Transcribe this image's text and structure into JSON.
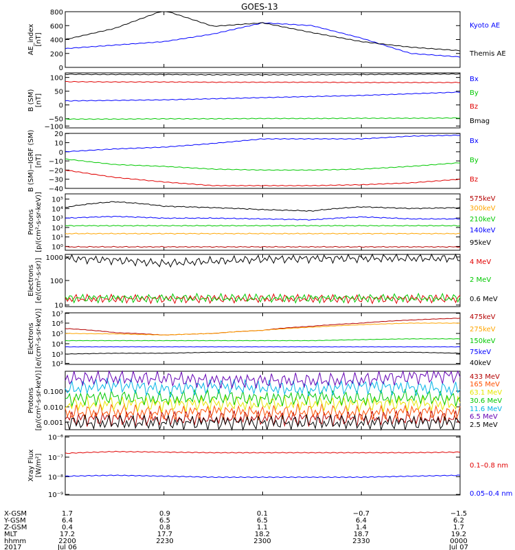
{
  "title": "GOES-13",
  "panels": [
    {
      "id": "ae",
      "ylabel": [
        "AE_index",
        "[nT]"
      ],
      "ticks": [
        "800",
        "600",
        "400",
        "200",
        "0"
      ],
      "legend": [
        {
          "label": "Kyoto AE",
          "color": "#0000ff"
        },
        {
          "label": "Themis AE",
          "color": "#000000"
        }
      ]
    },
    {
      "id": "b-sm",
      "ylabel": [
        "B (SM)",
        "[nT]"
      ],
      "ticks": [
        "100",
        "50",
        "0",
        "−50",
        "−100"
      ],
      "legend": [
        {
          "label": "Bx",
          "color": "#0000ff"
        },
        {
          "label": "By",
          "color": "#00c800"
        },
        {
          "label": "Bz",
          "color": "#e00000"
        },
        {
          "label": "Bmag",
          "color": "#000000"
        }
      ]
    },
    {
      "id": "b-igrf",
      "ylabel": [
        "B (SM)−IGRF (SM)",
        "[nT]"
      ],
      "ticks": [
        "20",
        "10",
        "0",
        "−10",
        "−20",
        "−30",
        "−40"
      ],
      "legend": [
        {
          "label": "Bx",
          "color": "#0000ff"
        },
        {
          "label": "By",
          "color": "#00c800"
        },
        {
          "label": "Bz",
          "color": "#e00000"
        }
      ]
    },
    {
      "id": "protons-low",
      "ylabel": [
        "Protons",
        "[p/(cm²-s-sr-keV)]"
      ],
      "ticks": [
        "10⁵",
        "10⁴",
        "10³",
        "10²",
        "10¹",
        "10⁰"
      ],
      "legend": [
        {
          "label": "575keV",
          "color": "#b40000"
        },
        {
          "label": "300keV",
          "color": "#ffa500"
        },
        {
          "label": "210keV",
          "color": "#00c800"
        },
        {
          "label": "140keV",
          "color": "#0000ff"
        },
        {
          "label": "95keV",
          "color": "#000000"
        }
      ]
    },
    {
      "id": "electrons-mev",
      "ylabel": [
        "Electrons",
        "[e/(cm²-s-sr)]"
      ],
      "ticks": [
        "1000",
        "100",
        "10"
      ],
      "legend": [
        {
          "label": "4 MeV",
          "color": "#e00000"
        },
        {
          "label": "2 MeV",
          "color": "#00c800"
        },
        {
          "label": "0.6 MeV",
          "color": "#000000"
        }
      ]
    },
    {
      "id": "electrons-kev",
      "ylabel": [
        "Electrons",
        "[e/(cm²-s-sr-keV)]"
      ],
      "ticks": [
        "10⁷",
        "10⁶",
        "10⁵",
        "10⁴",
        "10³",
        "10²"
      ],
      "legend": [
        {
          "label": "475keV",
          "color": "#b40000"
        },
        {
          "label": "275keV",
          "color": "#ffa500"
        },
        {
          "label": "150keV",
          "color": "#00c800"
        },
        {
          "label": "75keV",
          "color": "#0000ff"
        },
        {
          "label": "40keV",
          "color": "#000000"
        }
      ]
    },
    {
      "id": "protons-high",
      "ylabel": [
        "Protons",
        "[p/(cm²-s-sr-keV)]"
      ],
      "ticks": [
        "0.100",
        "0.010",
        "0.001"
      ],
      "legend": [
        {
          "label": "433 MeV",
          "color": "#b40000"
        },
        {
          "label": "165 MeV",
          "color": "#ff5000"
        },
        {
          "label": "63.1 MeV",
          "color": "#e6e600"
        },
        {
          "label": "30.6 MeV",
          "color": "#00c800"
        },
        {
          "label": "11.6 MeV",
          "color": "#00b4e6"
        },
        {
          "label": "6.5 MeV",
          "color": "#6400b4"
        },
        {
          "label": "2.5 MeV",
          "color": "#000000"
        }
      ]
    },
    {
      "id": "xray",
      "ylabel": [
        "Xray Flux",
        "[W/m²]"
      ],
      "ticks": [
        "10⁻⁶",
        "10⁻⁷",
        "10⁻⁸",
        "10⁻⁹"
      ],
      "legend": [
        {
          "label": "0.1–0.8 nm",
          "color": "#e00000"
        },
        {
          "label": "0.05–0.4 nm",
          "color": "#0000ff"
        }
      ]
    }
  ],
  "footer": {
    "row_labels": [
      "X-GSM",
      "Y-GSM",
      "Z-GSM",
      "MLT",
      "hhmm",
      "2017"
    ],
    "columns": [
      [
        "1.7",
        "6.4",
        "0.4",
        "17.2",
        "2200",
        "Jul 06"
      ],
      [
        "0.9",
        "6.5",
        "0.8",
        "17.7",
        "2230",
        ""
      ],
      [
        "0.1",
        "6.5",
        "1.1",
        "18.2",
        "2300",
        ""
      ],
      [
        "−0.7",
        "6.4",
        "1.4",
        "18.7",
        "2330",
        ""
      ],
      [
        "−1.5",
        "6.2",
        "1.7",
        "19.2",
        "0000",
        "Jul 07"
      ]
    ]
  },
  "chart_data": [
    {
      "type": "line",
      "title": "GOES-13",
      "x": [
        "2200",
        "2215",
        "2230",
        "2245",
        "2300",
        "2315",
        "2330",
        "2345",
        "0000"
      ],
      "ylabel": "AE_index [nT]",
      "ylim": [
        0,
        800
      ],
      "series": [
        {
          "name": "Kyoto AE",
          "values": [
            270,
            320,
            370,
            480,
            640,
            600,
            420,
            200,
            150
          ]
        },
        {
          "name": "Themis AE",
          "values": [
            400,
            560,
            820,
            590,
            640,
            500,
            370,
            290,
            240
          ]
        }
      ]
    },
    {
      "type": "line",
      "ylabel": "B (SM) [nT]",
      "ylim": [
        -100,
        100
      ],
      "series": [
        {
          "name": "Bx",
          "values": [
            -2,
            0,
            2,
            6,
            10,
            14,
            18,
            24,
            30
          ]
        },
        {
          "name": "By",
          "values": [
            -68,
            -68,
            -67,
            -67,
            -66,
            -66,
            -65,
            -65,
            -64
          ]
        },
        {
          "name": "Bz",
          "values": [
            68,
            67,
            67,
            66,
            66,
            66,
            65,
            65,
            65
          ]
        },
        {
          "name": "Bmag",
          "values": [
            95,
            94,
            94,
            93,
            93,
            93,
            94,
            95,
            96
          ]
        }
      ]
    },
    {
      "type": "line",
      "ylabel": "B (SM)-IGRF (SM) [nT]",
      "ylim": [
        -40,
        20
      ],
      "series": [
        {
          "name": "Bx",
          "values": [
            0,
            3,
            5,
            9,
            14,
            14,
            14,
            17,
            18
          ]
        },
        {
          "name": "By",
          "values": [
            -8,
            -14,
            -16,
            -19,
            -20,
            -20,
            -19,
            -16,
            -12
          ]
        },
        {
          "name": "Bz",
          "values": [
            -20,
            -28,
            -33,
            -37,
            -37,
            -37,
            -36,
            -34,
            -30
          ]
        }
      ]
    },
    {
      "type": "line",
      "ylabel": "Protons [p/(cm2-s-sr-keV)]",
      "ylim": [
        1,
        100000
      ],
      "series": [
        {
          "name": "575keV",
          "values": [
            2,
            2,
            2,
            2,
            2,
            2,
            2,
            2,
            2
          ]
        },
        {
          "name": "300keV",
          "values": [
            30,
            30,
            30,
            30,
            30,
            30,
            30,
            30,
            30
          ]
        },
        {
          "name": "210keV",
          "values": [
            150,
            150,
            150,
            150,
            150,
            150,
            150,
            150,
            150
          ]
        },
        {
          "name": "140keV",
          "values": [
            700,
            1000,
            700,
            700,
            600,
            500,
            900,
            600,
            600
          ]
        },
        {
          "name": "95keV",
          "values": [
            6000,
            20000,
            8000,
            6000,
            4000,
            3000,
            7000,
            5000,
            6000
          ]
        }
      ]
    },
    {
      "type": "line",
      "ylabel": "Electrons [e/(cm2-s-sr)]",
      "ylim": [
        10,
        1000
      ],
      "series": [
        {
          "name": "4 MeV",
          "values": [
            20,
            20,
            20,
            20,
            20,
            20,
            20,
            20,
            20
          ]
        },
        {
          "name": "2 MeV",
          "values": [
            21,
            21,
            21,
            21,
            21,
            21,
            21,
            21,
            21
          ]
        },
        {
          "name": "0.6 MeV",
          "values": [
            700,
            600,
            450,
            550,
            650,
            700,
            700,
            700,
            700
          ]
        }
      ]
    },
    {
      "type": "line",
      "ylabel": "Electrons [e/(cm2-s-sr-keV)]",
      "ylim": [
        100,
        10000000
      ],
      "series": [
        {
          "name": "475keV",
          "values": [
            300000,
            120000,
            70000,
            100000,
            200000,
            500000,
            1000000,
            2000000,
            3000000
          ]
        },
        {
          "name": "275keV",
          "values": [
            100000,
            90000,
            70000,
            100000,
            200000,
            400000,
            700000,
            1000000,
            1000000
          ]
        },
        {
          "name": "150keV",
          "values": [
            20000,
            20000,
            20000,
            20000,
            20000,
            20000,
            25000,
            30000,
            30000
          ]
        },
        {
          "name": "75keV",
          "values": [
            5000,
            5000,
            5000,
            5000,
            5000,
            5000,
            5000,
            5000,
            5000
          ]
        },
        {
          "name": "40keV",
          "values": [
            1000,
            1200,
            1200,
            1500,
            1500,
            1500,
            1500,
            1500,
            1200
          ]
        }
      ]
    },
    {
      "type": "line",
      "ylabel": "Protons [p/(cm2-s-sr-keV)]",
      "ylim": [
        0.001,
        0.3
      ],
      "series": [
        {
          "name": "433 MeV",
          "values": [
            0.003,
            0.003,
            0.003,
            0.003,
            0.003,
            0.003,
            0.003,
            0.003,
            0.003
          ]
        },
        {
          "name": "165 MeV",
          "values": [
            0.005,
            0.006,
            0.005,
            0.006,
            0.005,
            0.006,
            0.005,
            0.006,
            0.005
          ]
        },
        {
          "name": "63.1 MeV",
          "values": [
            0.012,
            0.013,
            0.012,
            0.013,
            0.012,
            0.013,
            0.012,
            0.013,
            0.012
          ]
        },
        {
          "name": "30.6 MeV",
          "values": [
            0.02,
            0.025,
            0.02,
            0.025,
            0.02,
            0.025,
            0.02,
            0.025,
            0.02
          ]
        },
        {
          "name": "11.6 MeV",
          "values": [
            0.05,
            0.08,
            0.05,
            0.07,
            0.06,
            0.05,
            0.07,
            0.06,
            0.05
          ]
        },
        {
          "name": "6.5 MeV",
          "values": [
            0.15,
            0.15,
            0.15,
            0.12,
            0.12,
            0.12,
            0.13,
            0.18,
            0.2
          ]
        },
        {
          "name": "2.5 MeV",
          "values": [
            0.002,
            0.002,
            0.002,
            0.002,
            0.002,
            0.002,
            0.002,
            0.002,
            0.002
          ]
        }
      ]
    },
    {
      "type": "line",
      "ylabel": "Xray Flux [W/m2]",
      "ylim": [
        1e-09,
        1e-06
      ],
      "series": [
        {
          "name": "0.1-0.8 nm",
          "values": [
            1.3e-07,
            1.6e-07,
            1.5e-07,
            1.4e-07,
            1.4e-07,
            1.4e-07,
            1.4e-07,
            1.4e-07,
            1.5e-07
          ]
        },
        {
          "name": "0.05-0.4 nm",
          "values": [
            9e-09,
            1e-08,
            9e-09,
            8e-09,
            8e-09,
            8e-09,
            8e-09,
            9e-09,
            1e-08
          ]
        }
      ]
    }
  ]
}
